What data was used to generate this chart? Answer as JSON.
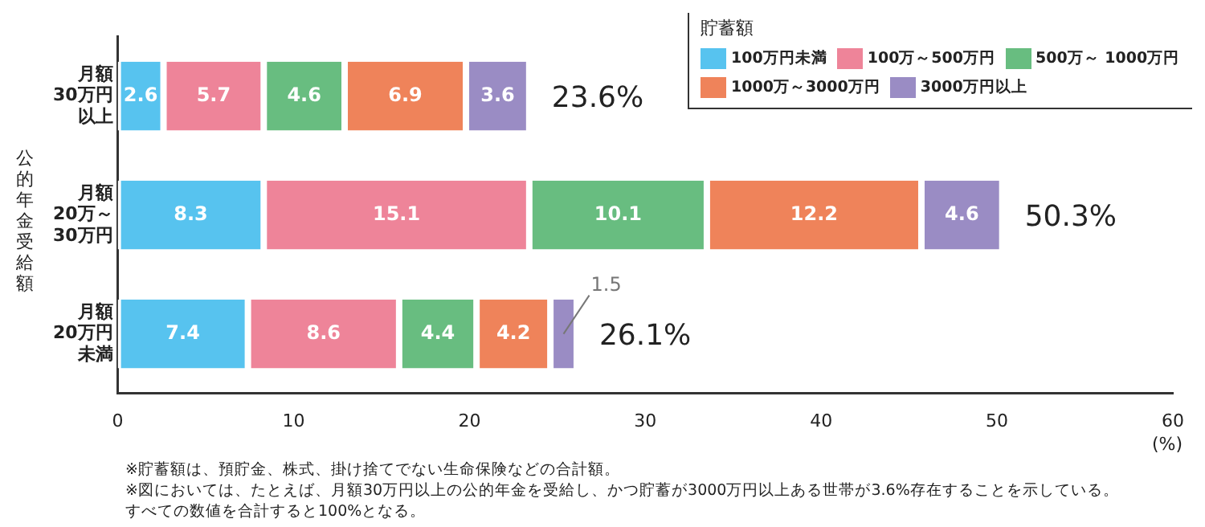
{
  "chart_data": {
    "type": "bar",
    "orientation": "horizontal",
    "stacked": true,
    "categories": [
      "月額30万円以上",
      "月額20万～30万円",
      "月額20万円未満"
    ],
    "series": [
      {
        "name": "100万円未満",
        "color": "#57c3ef",
        "values": [
          2.6,
          8.3,
          7.4
        ]
      },
      {
        "name": "100万～500万円",
        "color": "#ee8499",
        "values": [
          5.7,
          15.1,
          8.6
        ]
      },
      {
        "name": "500万～ 1000万円",
        "color": "#68bd80",
        "values": [
          4.6,
          10.1,
          4.4
        ]
      },
      {
        "name": "1000万～3000万円",
        "color": "#ef835a",
        "values": [
          6.9,
          12.2,
          4.2
        ]
      },
      {
        "name": "3000万円以上",
        "color": "#9a8cc4",
        "values": [
          3.6,
          4.6,
          1.5
        ]
      }
    ],
    "totals": [
      "23.6%",
      "50.3%",
      "26.1%"
    ],
    "data_labels": true,
    "xlim": [
      0,
      60
    ],
    "xticks": [
      0,
      10,
      20,
      30,
      40,
      50,
      60
    ],
    "xlabel": "(%)",
    "ylabel": "公的年金受給額",
    "legend_title": "貯蓄額",
    "legend": "top right",
    "grid": false,
    "annotations": [
      "※貯蓄額は、預貯金、株式、掛け捨てでない生命保険などの合計額。",
      "※図においては、たとえば、月額30万円以上の公的年金を受給し、かつ貯蓄が3000万円以上ある世帯が3.6%存在することを示している。",
      "すべての数値を合計すると100%となる。"
    ]
  }
}
